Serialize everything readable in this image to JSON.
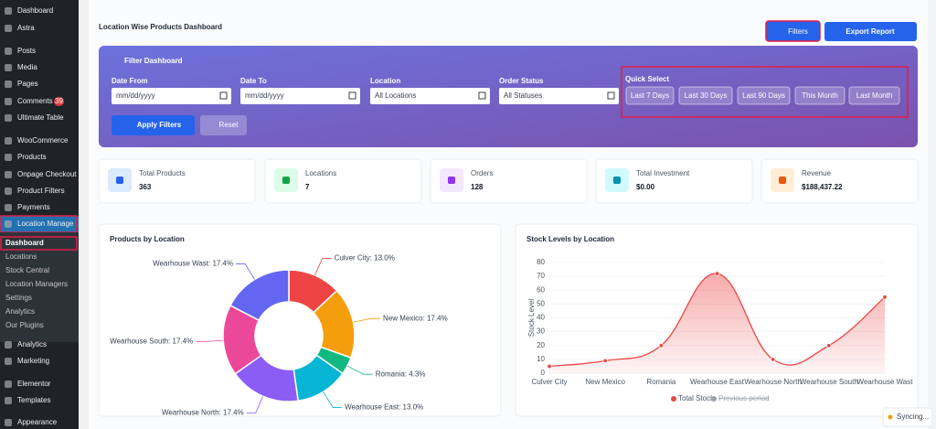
{
  "sidebar": {
    "menu": [
      "Dashboard",
      "Astra",
      "Posts",
      "Media",
      "Pages",
      "Comments",
      "Ultimate Table",
      "WooCommerce",
      "Products",
      "Onpage Checkout",
      "Product Filters",
      "Payments",
      "Location Manage",
      "Analytics",
      "Marketing",
      "Elementor",
      "Templates",
      "Appearance"
    ],
    "comments_badge": 39,
    "submenu": [
      "Dashboard",
      "Locations",
      "Stock Central",
      "Location Managers",
      "Settings",
      "Analytics",
      "Our Plugins"
    ]
  },
  "header": {
    "title": "Location Wise Products Dashboard",
    "filters_button": "Filters",
    "export_button": "Export Report"
  },
  "filter_panel": {
    "title": "Filter Dashboard",
    "fields": [
      {
        "label": "Date From",
        "placeholder": "mm/dd/yyyy"
      },
      {
        "label": "Date To",
        "placeholder": "mm/dd/yyyy"
      },
      {
        "label": "Location",
        "placeholder": "All Locations"
      },
      {
        "label": "Order Status",
        "placeholder": "All Statuses"
      }
    ],
    "quick_select": "Quick Select",
    "quick_buttons": [
      "Last 7 Days",
      "Last 30 Days",
      "Last 90 Days",
      "This Month",
      "Last Month"
    ],
    "apply": "Apply Filters",
    "reset": "Reset"
  },
  "stats": [
    {
      "label": "Total Products",
      "value": "363"
    },
    {
      "label": "Locations",
      "value": "7"
    },
    {
      "label": "Orders",
      "value": "128"
    },
    {
      "label": "Total Investment",
      "value": "$0.00"
    },
    {
      "label": "Revenue",
      "value": "$188,437.22"
    }
  ],
  "chart_data": [
    {
      "type": "pie",
      "title": "Products by Location",
      "categories": [
        "Culver City",
        "New Mexico",
        "Romania",
        "Wearhouse East",
        "Wearhouse North",
        "Wearhouse South",
        "Wearhouse Wast"
      ],
      "values": [
        13.0,
        17.4,
        4.3,
        13.0,
        17.4,
        17.4,
        17.4
      ],
      "value_labels": [
        "Culver City: 13.0%",
        "New Mexico: 17.4%",
        "Romania: 4.3%",
        "Wearhouse East: 13.0%",
        "Wearhouse North: 17.4%",
        "Wearhouse South: 17.4%",
        "Wearhouse Wast: 17.4%"
      ],
      "colors": [
        "#ef4444",
        "#f59e0b",
        "#10b981",
        "#06b6d4",
        "#8b5cf6",
        "#ec4899",
        "#6366f1"
      ]
    },
    {
      "type": "line",
      "title": "Stock Levels by Location",
      "y_label": "Stock Level",
      "categories": [
        "Culver City",
        "New Mexico",
        "Romania",
        "Wearhouse East",
        "Wearhouse North",
        "Wearhouse South",
        "Wearhouse Wast"
      ],
      "series": [
        {
          "name": "Total Stock",
          "color": "#ef4444",
          "values": [
            5,
            9,
            20,
            72,
            10,
            20,
            55
          ]
        },
        {
          "name": "Previous period",
          "color": "#9ca3af",
          "values": [
            null,
            null,
            null,
            null,
            null,
            null,
            null
          ],
          "hidden": true
        }
      ],
      "ylim": [
        0,
        80
      ],
      "yticks": [
        0,
        10,
        20,
        30,
        40,
        50,
        60,
        70,
        80
      ],
      "grid": true,
      "legend": "bottom"
    }
  ],
  "toast": "Syncing..."
}
